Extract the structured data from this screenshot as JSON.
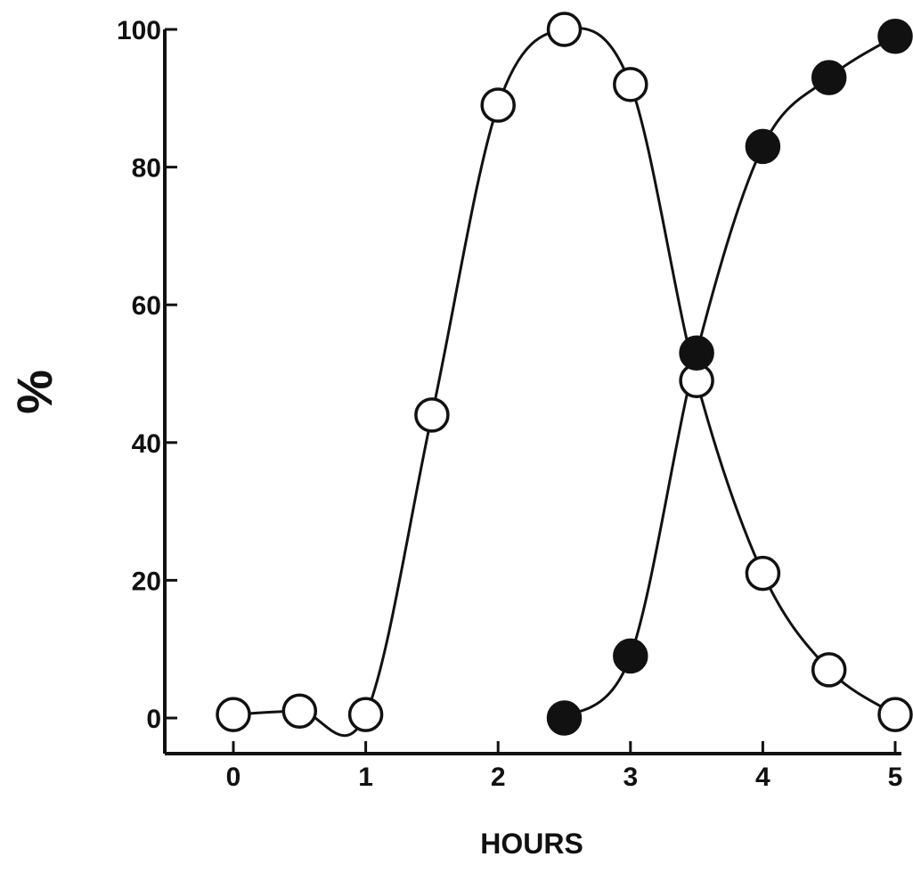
{
  "chart_data": {
    "type": "line",
    "title": "",
    "xlabel": "HOURS",
    "ylabel": "%",
    "xlim": [
      0,
      5
    ],
    "ylim": [
      0,
      100
    ],
    "x_ticks": [
      "0",
      "1",
      "2",
      "3",
      "4",
      "5"
    ],
    "y_ticks": [
      "0",
      "20",
      "40",
      "60",
      "80",
      "100"
    ],
    "grid": false,
    "legend": "none",
    "series": [
      {
        "marker": "open-circle",
        "color": "#111111",
        "x": [
          0,
          0.5,
          1,
          1.5,
          2,
          2.5,
          3,
          3.5,
          4,
          4.5,
          5
        ],
        "y": [
          0.5,
          1,
          0.5,
          44,
          89,
          100,
          92,
          49,
          21,
          7,
          0.5
        ]
      },
      {
        "marker": "filled-circle",
        "color": "#111111",
        "x": [
          2.5,
          3,
          3.5,
          4,
          4.5,
          5
        ],
        "y": [
          0,
          9,
          53,
          83,
          93,
          99
        ]
      }
    ]
  }
}
